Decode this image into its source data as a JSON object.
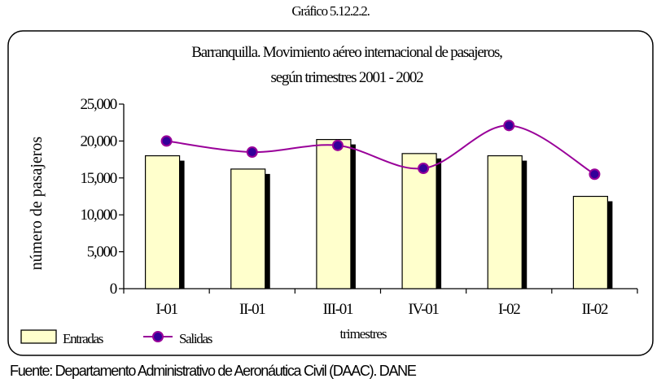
{
  "figure_label": "Gráfico 5.12.2.2.",
  "source_note": "Fuente: Departamento Administrativo de Aeronáutica Civil (DAAC). DANE",
  "colors": {
    "bar_fill": "#ffffcc",
    "bar_shadow": "#000000",
    "line": "#990099",
    "marker": "#330099"
  },
  "chart_data": {
    "type": "bar",
    "title_lines": [
      "Barranquilla. Movimiento aéreo internacional de pasajeros,",
      "según trimestres 2001 - 2002"
    ],
    "xlabel": "trimestres",
    "ylabel": "número de pasajeros",
    "categories": [
      "I-01",
      "II-01",
      "III-01",
      "IV-01",
      "I-02",
      "II-02"
    ],
    "ylim": [
      0,
      25000
    ],
    "yticks": [
      0,
      5000,
      10000,
      15000,
      20000,
      25000
    ],
    "ytick_labels": [
      "0",
      "5,000",
      "10,000",
      "15,000",
      "20,000",
      "25,000"
    ],
    "grid": false,
    "legend_position": "bottom-left",
    "series": [
      {
        "name": "Entradas",
        "type": "bar",
        "values": [
          18000,
          16200,
          20200,
          18300,
          18000,
          12500
        ]
      },
      {
        "name": "Salidas",
        "type": "line",
        "smooth": true,
        "values": [
          20000,
          18500,
          19400,
          16300,
          22100,
          15500
        ]
      }
    ]
  }
}
